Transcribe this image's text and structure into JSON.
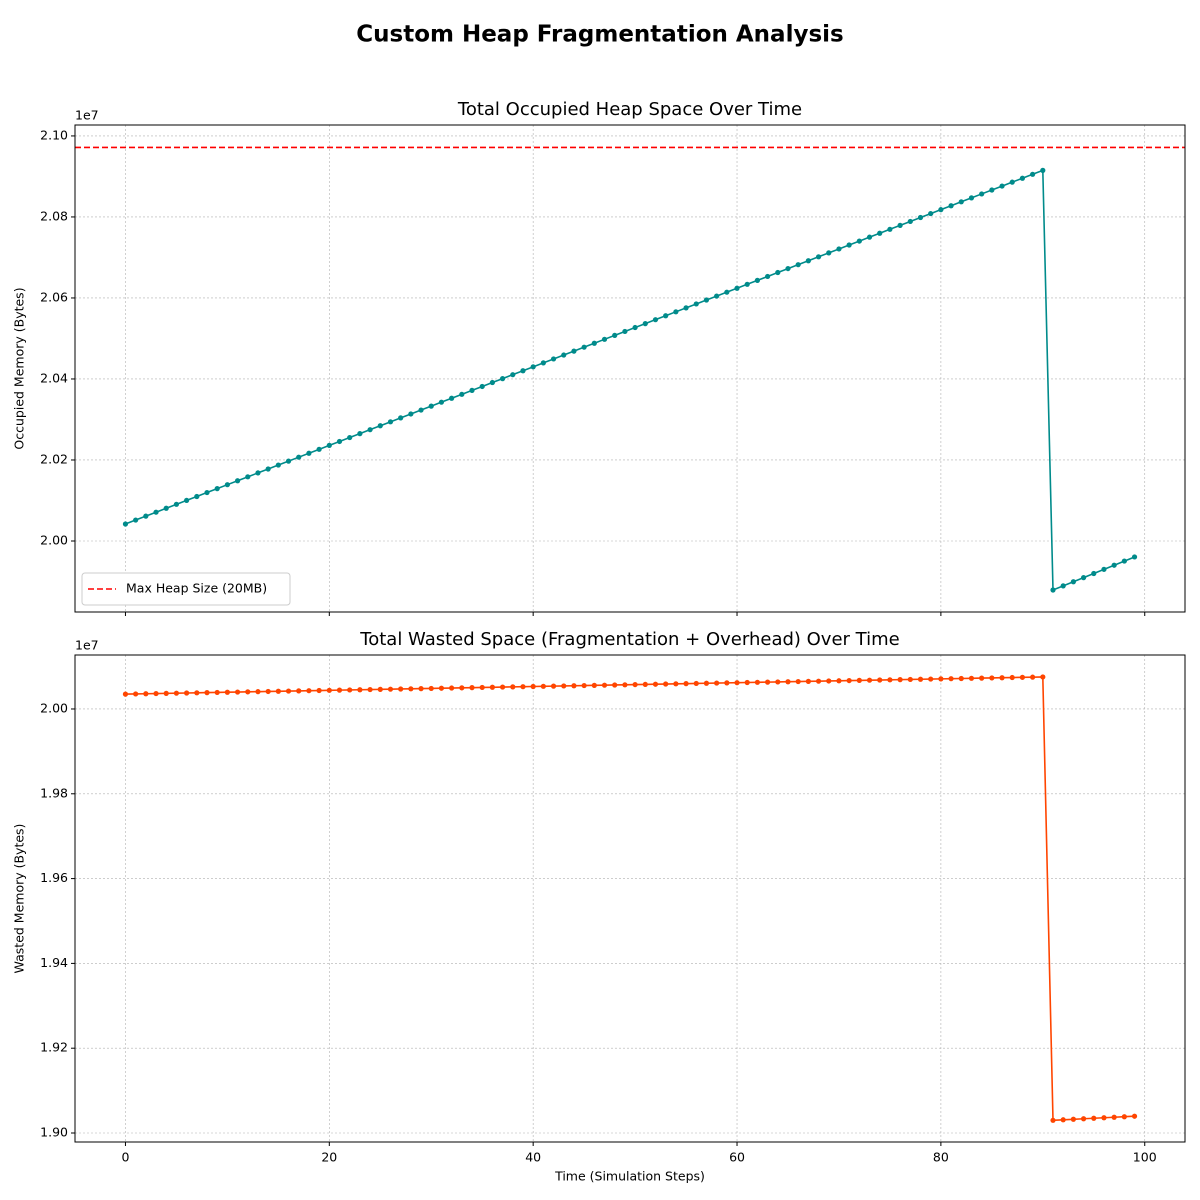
{
  "title": "Custom Heap Fragmentation Analysis",
  "chart_data": [
    {
      "type": "line",
      "title": "Total Occupied Heap Space Over Time",
      "ylabel": "Occupied Memory (Bytes)",
      "y_offset_label": "1e7",
      "x": [
        0,
        1,
        2,
        3,
        4,
        5,
        6,
        7,
        8,
        9,
        10,
        11,
        12,
        13,
        14,
        15,
        16,
        17,
        18,
        19,
        20,
        21,
        22,
        23,
        24,
        25,
        26,
        27,
        28,
        29,
        30,
        31,
        32,
        33,
        34,
        35,
        36,
        37,
        38,
        39,
        40,
        41,
        42,
        43,
        44,
        45,
        46,
        47,
        48,
        49,
        50,
        51,
        52,
        53,
        54,
        55,
        56,
        57,
        58,
        59,
        60,
        61,
        62,
        63,
        64,
        65,
        66,
        67,
        68,
        69,
        70,
        71,
        72,
        73,
        74,
        75,
        76,
        77,
        78,
        79,
        80,
        81,
        82,
        83,
        84,
        85,
        86,
        87,
        88,
        89,
        90,
        91,
        92,
        93,
        94,
        95,
        96,
        97,
        98,
        99
      ],
      "series": [
        {
          "color": "#008b8b",
          "values": [
            20042000,
            20051700,
            20061400,
            20071100,
            20080800,
            20090500,
            20100200,
            20109900,
            20119600,
            20129300,
            20139000,
            20148700,
            20158400,
            20168100,
            20177800,
            20187500,
            20197200,
            20206900,
            20216600,
            20226300,
            20236000,
            20245700,
            20255400,
            20265100,
            20274800,
            20284500,
            20294200,
            20303900,
            20313600,
            20323300,
            20333000,
            20342700,
            20352400,
            20362100,
            20371800,
            20381500,
            20391200,
            20400900,
            20410600,
            20420300,
            20430000,
            20439700,
            20449400,
            20459100,
            20468800,
            20478500,
            20488200,
            20497900,
            20507600,
            20517300,
            20527000,
            20536700,
            20546400,
            20556100,
            20565800,
            20575500,
            20585200,
            20594900,
            20604600,
            20614300,
            20624000,
            20633700,
            20643400,
            20653100,
            20662800,
            20672500,
            20682200,
            20691900,
            20701600,
            20711300,
            20721000,
            20730700,
            20740400,
            20750100,
            20759800,
            20769500,
            20779200,
            20788900,
            20798600,
            20808300,
            20818000,
            20827700,
            20837400,
            20847100,
            20856800,
            20866500,
            20876200,
            20885900,
            20895600,
            20905300,
            20915000,
            19879000,
            19889200,
            19899400,
            19909600,
            19919800,
            19930000,
            19940200,
            19950400,
            19960600
          ]
        }
      ],
      "hlines": [
        {
          "value": 20971520,
          "label": "Max Heap Size (20MB)",
          "color": "#ff0000",
          "style": "dashed"
        }
      ],
      "legend": "lower left",
      "xlim": [
        -4.95,
        103.95
      ],
      "xticks": [
        0,
        20,
        40,
        60,
        80,
        100
      ],
      "xtick_labels": false,
      "ylim": [
        19824700,
        21027000
      ],
      "yticks": [
        {
          "value": 20000000,
          "label": "2.00"
        },
        {
          "value": 20200000,
          "label": "2.02"
        },
        {
          "value": 20400000,
          "label": "2.04"
        },
        {
          "value": 20600000,
          "label": "2.06"
        },
        {
          "value": 20800000,
          "label": "2.08"
        },
        {
          "value": 21000000,
          "label": "2.10"
        }
      ],
      "grid": true
    },
    {
      "type": "line",
      "title": "Total Wasted Space (Fragmentation + Overhead) Over Time",
      "ylabel": "Wasted Memory (Bytes)",
      "xlabel": "Time (Simulation Steps)",
      "y_offset_label": "1e7",
      "x": [
        0,
        1,
        2,
        3,
        4,
        5,
        6,
        7,
        8,
        9,
        10,
        11,
        12,
        13,
        14,
        15,
        16,
        17,
        18,
        19,
        20,
        21,
        22,
        23,
        24,
        25,
        26,
        27,
        28,
        29,
        30,
        31,
        32,
        33,
        34,
        35,
        36,
        37,
        38,
        39,
        40,
        41,
        42,
        43,
        44,
        45,
        46,
        47,
        48,
        49,
        50,
        51,
        52,
        53,
        54,
        55,
        56,
        57,
        58,
        59,
        60,
        61,
        62,
        63,
        64,
        65,
        66,
        67,
        68,
        69,
        70,
        71,
        72,
        73,
        74,
        75,
        76,
        77,
        78,
        79,
        80,
        81,
        82,
        83,
        84,
        85,
        86,
        87,
        88,
        89,
        90,
        91,
        92,
        93,
        94,
        95,
        96,
        97,
        98,
        99
      ],
      "series": [
        {
          "color": "#ff4500",
          "values": [
            20035000,
            20035450,
            20035900,
            20036350,
            20036800,
            20037250,
            20037700,
            20038150,
            20038600,
            20039050,
            20039500,
            20039950,
            20040400,
            20040850,
            20041300,
            20041750,
            20042200,
            20042650,
            20043100,
            20043550,
            20044000,
            20044450,
            20044900,
            20045350,
            20045800,
            20046250,
            20046700,
            20047150,
            20047600,
            20048050,
            20048500,
            20048950,
            20049400,
            20049850,
            20050300,
            20050750,
            20051200,
            20051650,
            20052100,
            20052550,
            20053000,
            20053450,
            20053900,
            20054350,
            20054800,
            20055250,
            20055700,
            20056150,
            20056600,
            20057050,
            20057500,
            20057950,
            20058400,
            20058850,
            20059300,
            20059750,
            20060200,
            20060650,
            20061100,
            20061550,
            20062000,
            20062450,
            20062900,
            20063350,
            20063800,
            20064250,
            20064700,
            20065150,
            20065600,
            20066050,
            20066500,
            20066950,
            20067400,
            20067850,
            20068300,
            20068750,
            20069200,
            20069650,
            20070100,
            20070550,
            20071000,
            20071450,
            20071900,
            20072350,
            20072800,
            20073250,
            20073700,
            20074150,
            20074600,
            20075050,
            20075500,
            19030000,
            19031200,
            19032400,
            19033600,
            19034800,
            19036000,
            19037200,
            19038400,
            19039600
          ]
        }
      ],
      "xlim": [
        -4.95,
        103.95
      ],
      "xticks": [
        0,
        20,
        40,
        60,
        80,
        100
      ],
      "xtick_labels": true,
      "ylim": [
        18978800,
        20127300
      ],
      "yticks": [
        {
          "value": 19000000,
          "label": "1.90"
        },
        {
          "value": 19200000,
          "label": "1.92"
        },
        {
          "value": 19400000,
          "label": "1.94"
        },
        {
          "value": 19600000,
          "label": "1.96"
        },
        {
          "value": 19800000,
          "label": "1.98"
        },
        {
          "value": 20000000,
          "label": "2.00"
        }
      ],
      "grid": true
    }
  ]
}
